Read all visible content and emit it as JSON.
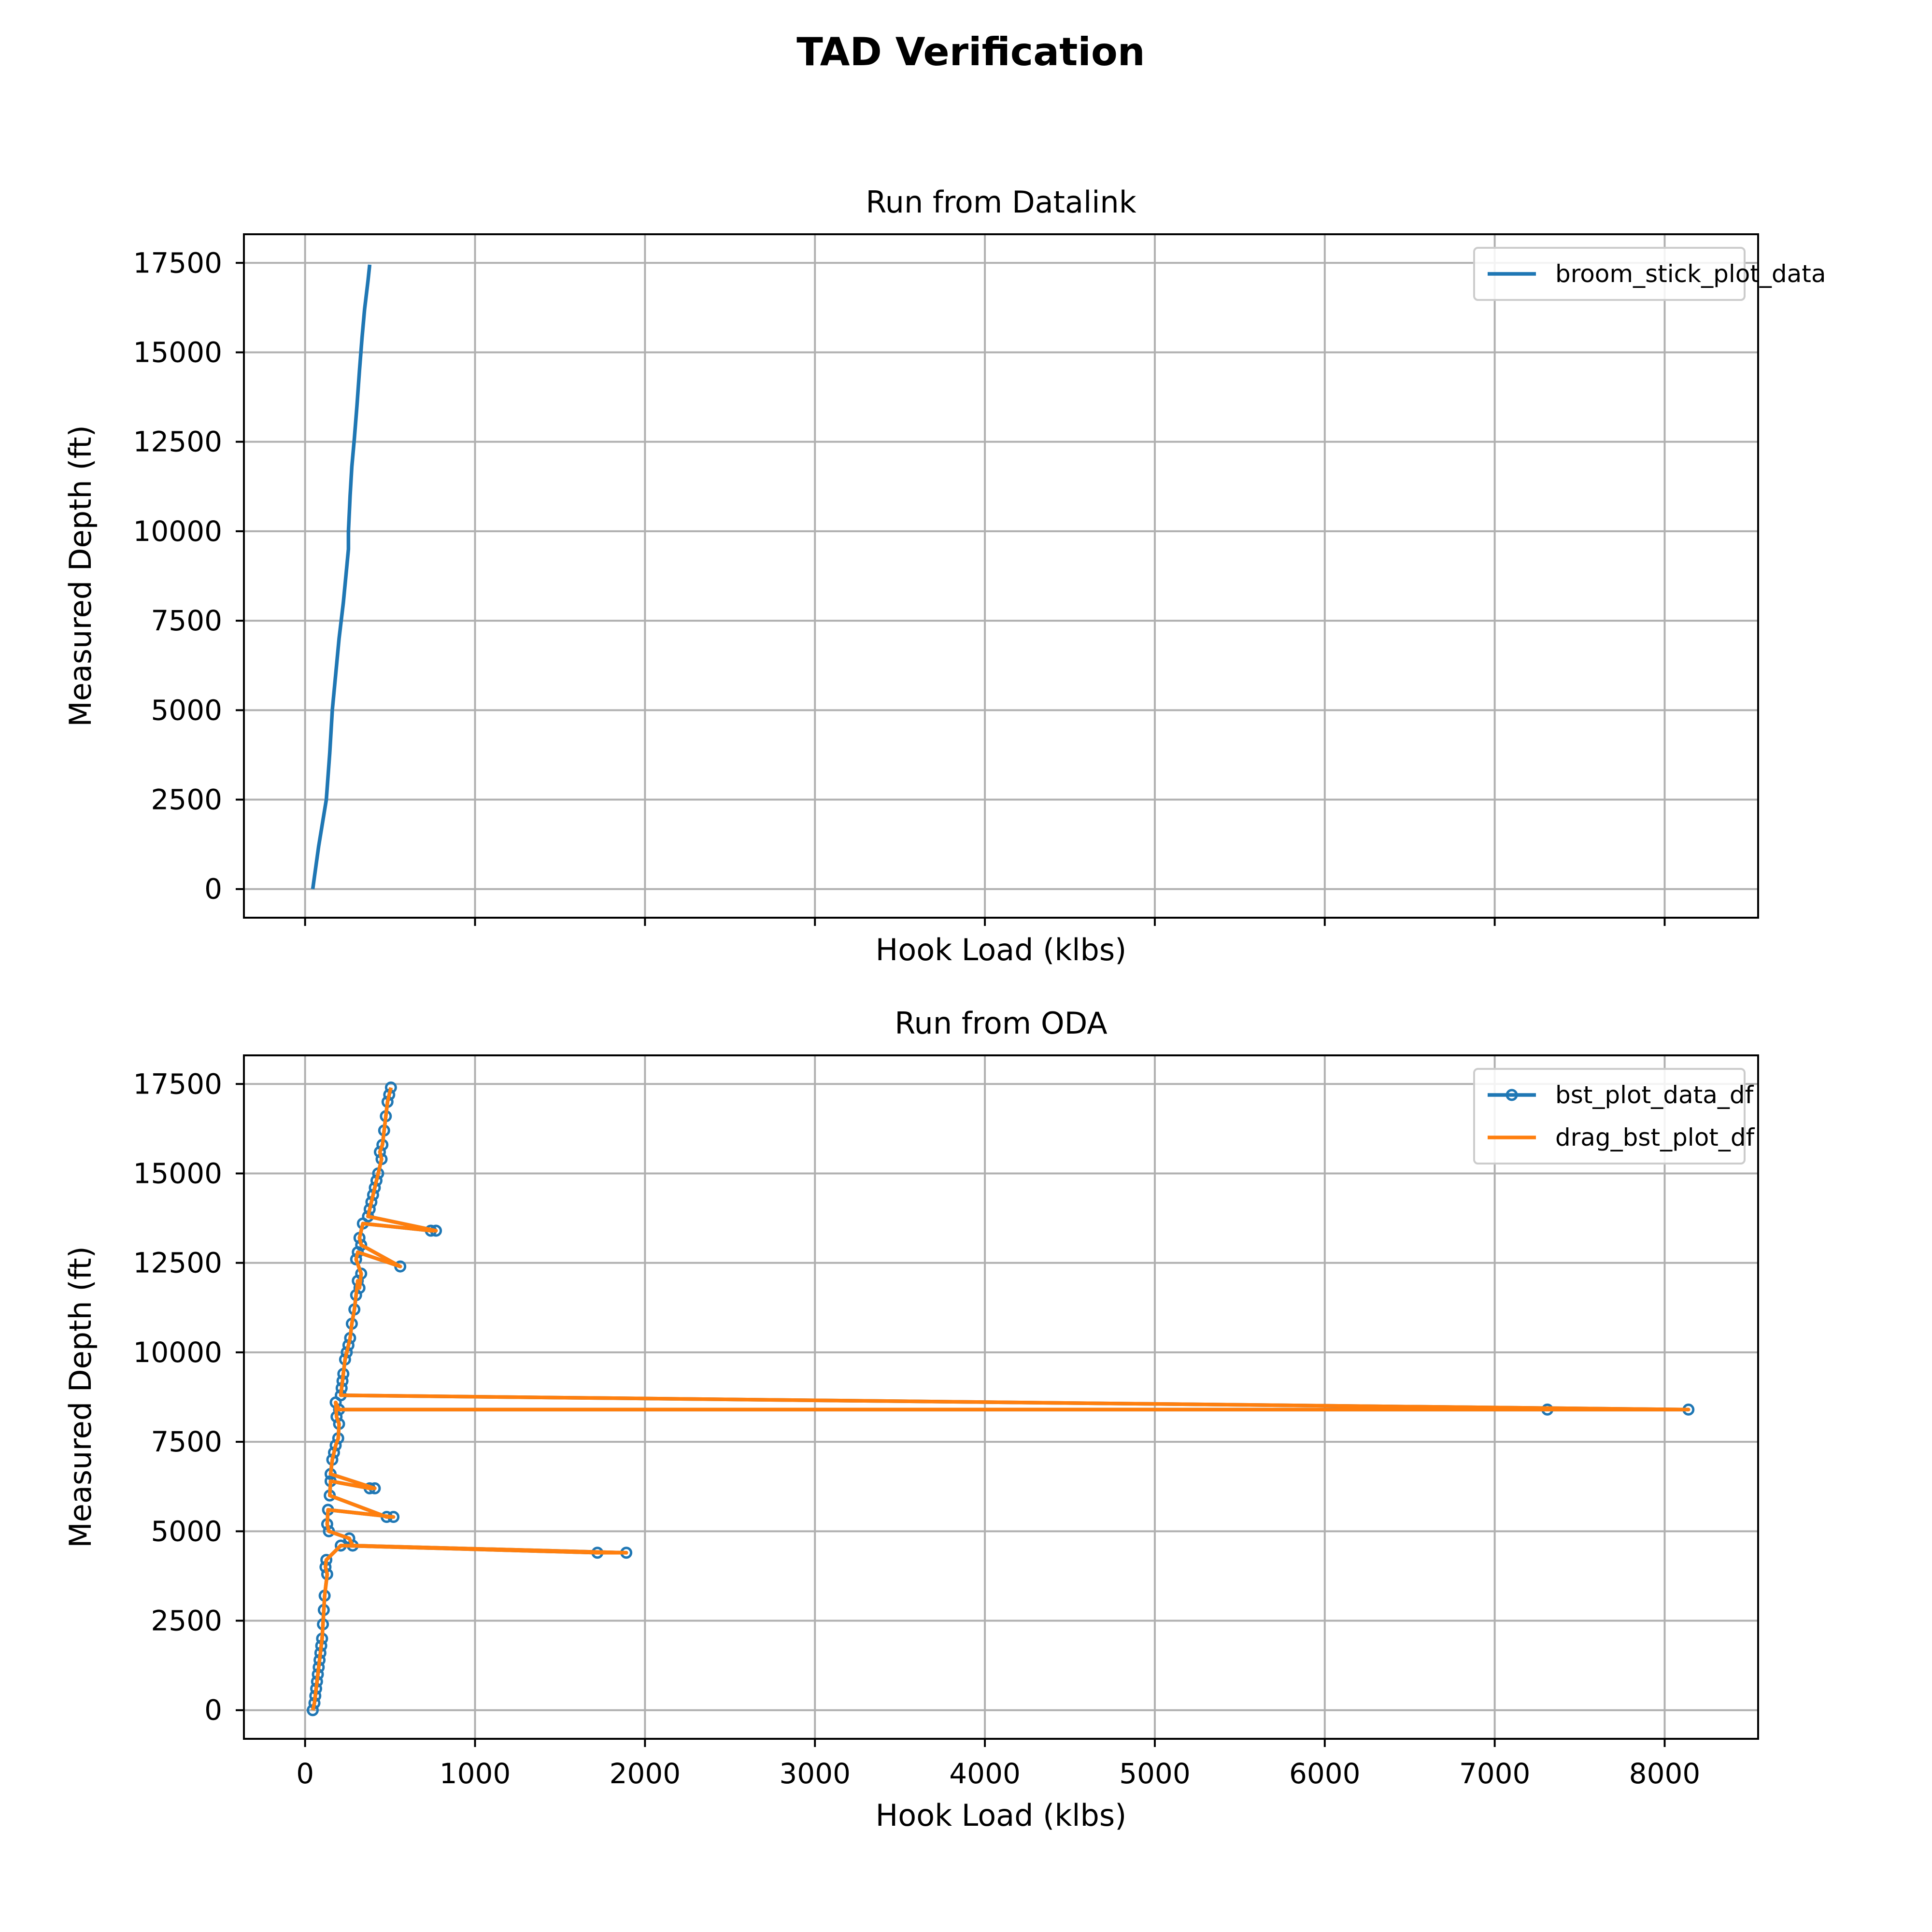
{
  "figure": {
    "title": "TAD Verification"
  },
  "chart_data": [
    {
      "type": "line",
      "title": "Run from Datalink",
      "xlabel": "Hook Load (klbs)",
      "ylabel": "Measured Depth (ft)",
      "xlim": [
        -360,
        8550
      ],
      "ylim": [
        -800,
        18300
      ],
      "x_ticks": [
        0,
        1000,
        2000,
        3000,
        4000,
        5000,
        6000,
        7000,
        8000
      ],
      "x_tick_labels_visible": false,
      "y_ticks": [
        0,
        2500,
        5000,
        7500,
        10000,
        12500,
        15000,
        17500
      ],
      "grid": true,
      "legend_position": "upper right",
      "series": [
        {
          "name": "broom_stick_plot_data",
          "color": "#1f77b4",
          "marker": "none",
          "x": [
            45,
            80,
            125,
            145,
            160,
            180,
            200,
            225,
            245,
            255,
            255,
            265,
            275,
            290,
            305,
            320,
            335,
            350,
            370,
            380
          ],
          "y": [
            0,
            1200,
            2500,
            3800,
            5000,
            6000,
            7000,
            8000,
            9000,
            9500,
            10000,
            11000,
            11800,
            12600,
            13500,
            14500,
            15400,
            16200,
            17000,
            17450
          ]
        }
      ]
    },
    {
      "type": "line",
      "title": "Run from ODA",
      "xlabel": "Hook Load (klbs)",
      "ylabel": "Measured Depth (ft)",
      "xlim": [
        -360,
        8550
      ],
      "ylim": [
        -800,
        18300
      ],
      "x_ticks": [
        0,
        1000,
        2000,
        3000,
        4000,
        5000,
        6000,
        7000,
        8000
      ],
      "x_tick_labels_visible": true,
      "y_ticks": [
        0,
        2500,
        5000,
        7500,
        10000,
        12500,
        15000,
        17500
      ],
      "grid": true,
      "legend_position": "upper right",
      "series": [
        {
          "name": "bst_plot_data_df",
          "color": "#1f77b4",
          "marker": "circle",
          "x": [
            45,
            55,
            60,
            65,
            70,
            75,
            80,
            85,
            90,
            95,
            100,
            105,
            110,
            115,
            130,
            120,
            125,
            210,
            1720,
            1890,
            280,
            260,
            140,
            130,
            135,
            520,
            480,
            145,
            150,
            380,
            410,
            150,
            160,
            170,
            180,
            195,
            200,
            185,
            180,
            200,
            7310,
            8140,
            210,
            215,
            220,
            225,
            235,
            245,
            255,
            265,
            275,
            290,
            300,
            310,
            320,
            330,
            300,
            310,
            560,
            330,
            320,
            340,
            740,
            770,
            370,
            380,
            390,
            400,
            410,
            420,
            430,
            450,
            440,
            455,
            465,
            475,
            485,
            495,
            505
          ],
          "y": [
            0,
            200,
            400,
            600,
            800,
            1000,
            1200,
            1400,
            1600,
            1800,
            2000,
            2400,
            2800,
            3200,
            3800,
            4000,
            4200,
            4600,
            4400,
            4400,
            4600,
            4800,
            5000,
            5200,
            5600,
            5400,
            5400,
            6000,
            6400,
            6200,
            6200,
            6600,
            7000,
            7200,
            7400,
            7600,
            8000,
            8200,
            8600,
            8400,
            8400,
            8400,
            8800,
            9000,
            9200,
            9400,
            9800,
            10000,
            10200,
            10400,
            10800,
            11200,
            11600,
            12000,
            11800,
            12200,
            12600,
            12800,
            12400,
            13000,
            13200,
            13600,
            13400,
            13400,
            13800,
            14000,
            14200,
            14400,
            14600,
            14800,
            15000,
            15400,
            15600,
            15800,
            16200,
            16600,
            17000,
            17200,
            17400
          ]
        },
        {
          "name": "drag_bst_plot_df",
          "color": "#ff7f0e",
          "marker": "none",
          "x": [
            45,
            55,
            60,
            65,
            70,
            75,
            80,
            85,
            90,
            95,
            100,
            105,
            110,
            115,
            130,
            120,
            125,
            210,
            1720,
            1890,
            280,
            260,
            140,
            130,
            135,
            520,
            480,
            145,
            150,
            380,
            410,
            150,
            160,
            170,
            180,
            195,
            200,
            185,
            180,
            200,
            7310,
            8140,
            210,
            215,
            220,
            225,
            235,
            245,
            255,
            265,
            275,
            290,
            300,
            310,
            320,
            330,
            300,
            310,
            560,
            330,
            320,
            340,
            740,
            770,
            370,
            380,
            390,
            400,
            410,
            420,
            430,
            450,
            440,
            455,
            465,
            475,
            485,
            495,
            505
          ],
          "y": [
            0,
            200,
            400,
            600,
            800,
            1000,
            1200,
            1400,
            1600,
            1800,
            2000,
            2400,
            2800,
            3200,
            3800,
            4000,
            4200,
            4600,
            4400,
            4400,
            4600,
            4800,
            5000,
            5200,
            5600,
            5400,
            5400,
            6000,
            6400,
            6200,
            6200,
            6600,
            7000,
            7200,
            7400,
            7600,
            8000,
            8200,
            8600,
            8400,
            8400,
            8400,
            8800,
            9000,
            9200,
            9400,
            9800,
            10000,
            10200,
            10400,
            10800,
            11200,
            11600,
            12000,
            11800,
            12200,
            12600,
            12800,
            12400,
            13000,
            13200,
            13600,
            13400,
            13400,
            13800,
            14000,
            14200,
            14400,
            14600,
            14800,
            15000,
            15400,
            15600,
            15800,
            16200,
            16600,
            17000,
            17200,
            17400
          ]
        }
      ]
    }
  ]
}
